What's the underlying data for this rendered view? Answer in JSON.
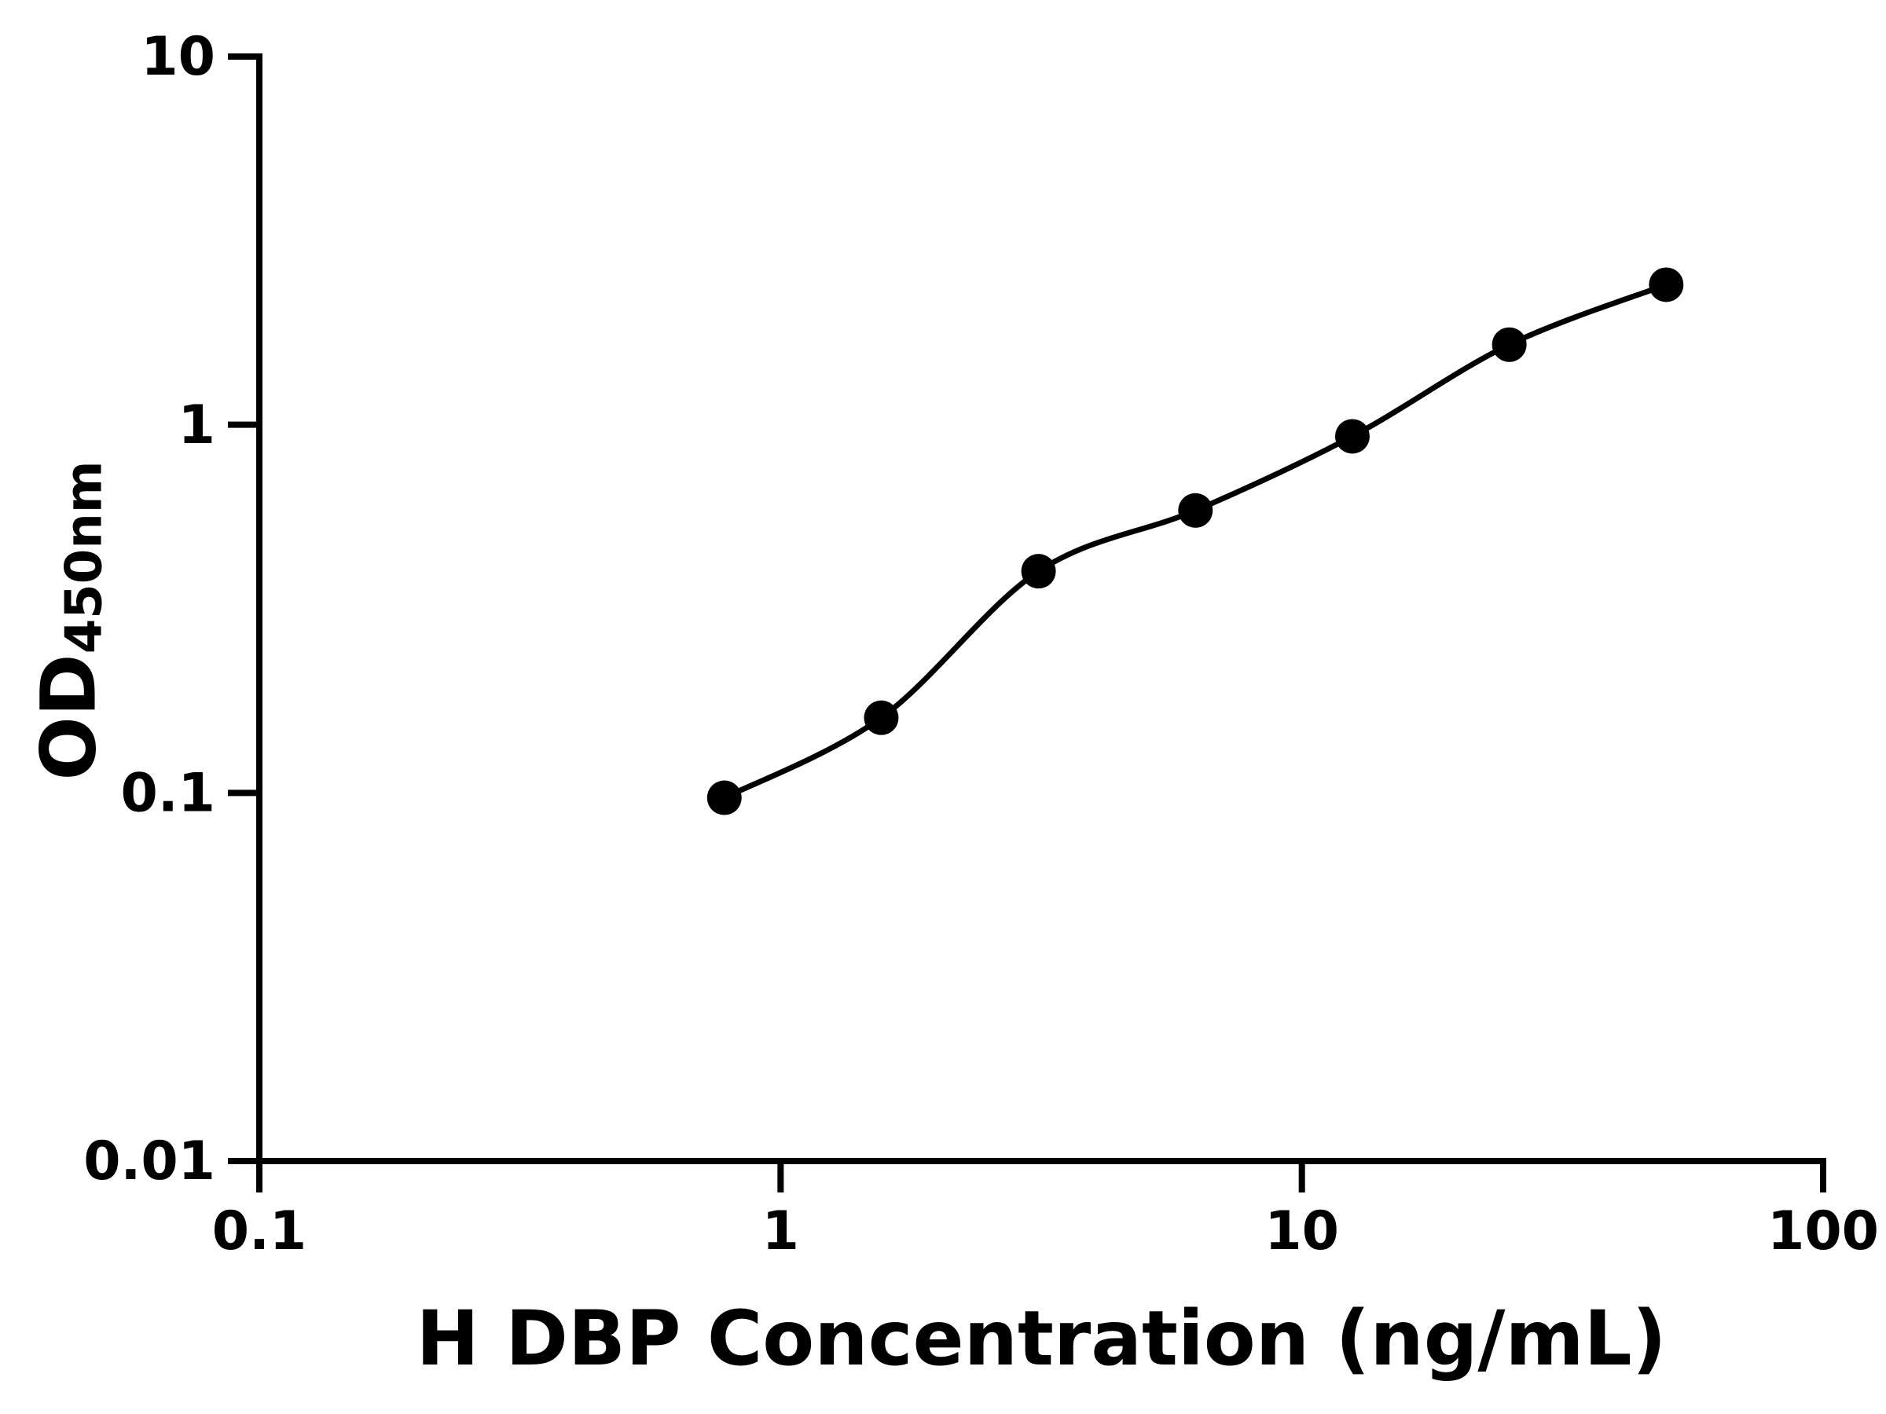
{
  "figure": {
    "background_color": "#ffffff",
    "axis_color": "#000000",
    "text_color": "#000000"
  },
  "chart_data": {
    "type": "scatter",
    "title": "",
    "xlabel": "H DBP Concentration (ng/mL)",
    "ylabel": "OD450nm",
    "ylabel_parts": {
      "main": "OD",
      "subscript": "450nm"
    },
    "x_scale": "log",
    "y_scale": "log",
    "xlim": [
      0.1,
      100
    ],
    "ylim": [
      0.01,
      10
    ],
    "x_ticks": [
      0.1,
      1,
      10,
      100
    ],
    "x_tick_labels": [
      "0.1",
      "1",
      "10",
      "100"
    ],
    "y_ticks": [
      0.01,
      0.1,
      1,
      10
    ],
    "y_tick_labels": [
      "0.01",
      "0.1",
      "1",
      "10"
    ],
    "grid": false,
    "legend": "none",
    "marker": "filled-circle",
    "marker_color": "#000000",
    "line_color": "#000000",
    "fit": "smooth standard-curve line through points",
    "points": [
      {
        "x": 0.78,
        "y": 0.097
      },
      {
        "x": 1.56,
        "y": 0.16
      },
      {
        "x": 3.125,
        "y": 0.4
      },
      {
        "x": 6.25,
        "y": 0.585
      },
      {
        "x": 12.5,
        "y": 0.93
      },
      {
        "x": 25,
        "y": 1.65
      },
      {
        "x": 50,
        "y": 2.4
      }
    ]
  }
}
